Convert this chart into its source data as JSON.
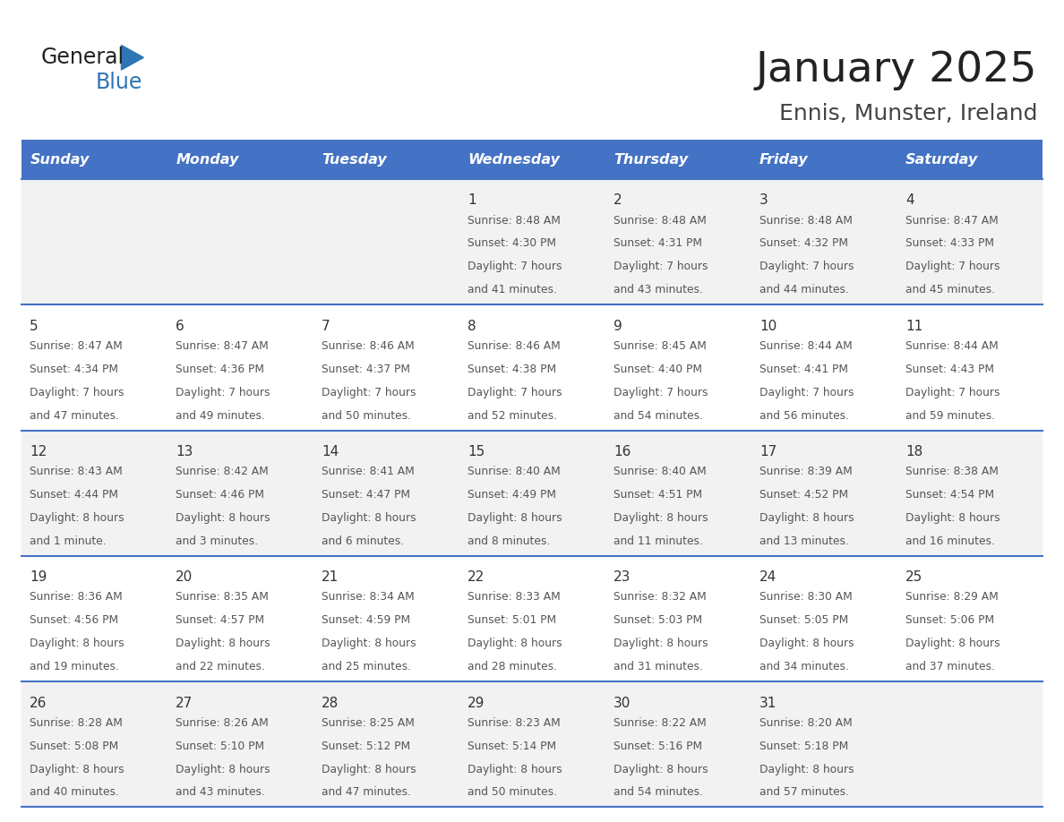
{
  "title": "January 2025",
  "subtitle": "Ennis, Munster, Ireland",
  "days_of_week": [
    "Sunday",
    "Monday",
    "Tuesday",
    "Wednesday",
    "Thursday",
    "Friday",
    "Saturday"
  ],
  "header_bg": "#4472C4",
  "header_text": "#FFFFFF",
  "row_bg_even": "#F2F2F2",
  "row_bg_odd": "#FFFFFF",
  "separator_color": "#4472C4",
  "day_num_color": "#333333",
  "cell_text_color": "#555555",
  "title_color": "#222222",
  "subtitle_color": "#444444",
  "logo_general_color": "#222222",
  "logo_blue_color": "#2E75B6",
  "calendar_data": [
    {
      "day": 1,
      "col": 3,
      "row": 0,
      "sunrise": "8:48 AM",
      "sunset": "4:30 PM",
      "daylight_l1": "Daylight: 7 hours",
      "daylight_l2": "and 41 minutes."
    },
    {
      "day": 2,
      "col": 4,
      "row": 0,
      "sunrise": "8:48 AM",
      "sunset": "4:31 PM",
      "daylight_l1": "Daylight: 7 hours",
      "daylight_l2": "and 43 minutes."
    },
    {
      "day": 3,
      "col": 5,
      "row": 0,
      "sunrise": "8:48 AM",
      "sunset": "4:32 PM",
      "daylight_l1": "Daylight: 7 hours",
      "daylight_l2": "and 44 minutes."
    },
    {
      "day": 4,
      "col": 6,
      "row": 0,
      "sunrise": "8:47 AM",
      "sunset": "4:33 PM",
      "daylight_l1": "Daylight: 7 hours",
      "daylight_l2": "and 45 minutes."
    },
    {
      "day": 5,
      "col": 0,
      "row": 1,
      "sunrise": "8:47 AM",
      "sunset": "4:34 PM",
      "daylight_l1": "Daylight: 7 hours",
      "daylight_l2": "and 47 minutes."
    },
    {
      "day": 6,
      "col": 1,
      "row": 1,
      "sunrise": "8:47 AM",
      "sunset": "4:36 PM",
      "daylight_l1": "Daylight: 7 hours",
      "daylight_l2": "and 49 minutes."
    },
    {
      "day": 7,
      "col": 2,
      "row": 1,
      "sunrise": "8:46 AM",
      "sunset": "4:37 PM",
      "daylight_l1": "Daylight: 7 hours",
      "daylight_l2": "and 50 minutes."
    },
    {
      "day": 8,
      "col": 3,
      "row": 1,
      "sunrise": "8:46 AM",
      "sunset": "4:38 PM",
      "daylight_l1": "Daylight: 7 hours",
      "daylight_l2": "and 52 minutes."
    },
    {
      "day": 9,
      "col": 4,
      "row": 1,
      "sunrise": "8:45 AM",
      "sunset": "4:40 PM",
      "daylight_l1": "Daylight: 7 hours",
      "daylight_l2": "and 54 minutes."
    },
    {
      "day": 10,
      "col": 5,
      "row": 1,
      "sunrise": "8:44 AM",
      "sunset": "4:41 PM",
      "daylight_l1": "Daylight: 7 hours",
      "daylight_l2": "and 56 minutes."
    },
    {
      "day": 11,
      "col": 6,
      "row": 1,
      "sunrise": "8:44 AM",
      "sunset": "4:43 PM",
      "daylight_l1": "Daylight: 7 hours",
      "daylight_l2": "and 59 minutes."
    },
    {
      "day": 12,
      "col": 0,
      "row": 2,
      "sunrise": "8:43 AM",
      "sunset": "4:44 PM",
      "daylight_l1": "Daylight: 8 hours",
      "daylight_l2": "and 1 minute."
    },
    {
      "day": 13,
      "col": 1,
      "row": 2,
      "sunrise": "8:42 AM",
      "sunset": "4:46 PM",
      "daylight_l1": "Daylight: 8 hours",
      "daylight_l2": "and 3 minutes."
    },
    {
      "day": 14,
      "col": 2,
      "row": 2,
      "sunrise": "8:41 AM",
      "sunset": "4:47 PM",
      "daylight_l1": "Daylight: 8 hours",
      "daylight_l2": "and 6 minutes."
    },
    {
      "day": 15,
      "col": 3,
      "row": 2,
      "sunrise": "8:40 AM",
      "sunset": "4:49 PM",
      "daylight_l1": "Daylight: 8 hours",
      "daylight_l2": "and 8 minutes."
    },
    {
      "day": 16,
      "col": 4,
      "row": 2,
      "sunrise": "8:40 AM",
      "sunset": "4:51 PM",
      "daylight_l1": "Daylight: 8 hours",
      "daylight_l2": "and 11 minutes."
    },
    {
      "day": 17,
      "col": 5,
      "row": 2,
      "sunrise": "8:39 AM",
      "sunset": "4:52 PM",
      "daylight_l1": "Daylight: 8 hours",
      "daylight_l2": "and 13 minutes."
    },
    {
      "day": 18,
      "col": 6,
      "row": 2,
      "sunrise": "8:38 AM",
      "sunset": "4:54 PM",
      "daylight_l1": "Daylight: 8 hours",
      "daylight_l2": "and 16 minutes."
    },
    {
      "day": 19,
      "col": 0,
      "row": 3,
      "sunrise": "8:36 AM",
      "sunset": "4:56 PM",
      "daylight_l1": "Daylight: 8 hours",
      "daylight_l2": "and 19 minutes."
    },
    {
      "day": 20,
      "col": 1,
      "row": 3,
      "sunrise": "8:35 AM",
      "sunset": "4:57 PM",
      "daylight_l1": "Daylight: 8 hours",
      "daylight_l2": "and 22 minutes."
    },
    {
      "day": 21,
      "col": 2,
      "row": 3,
      "sunrise": "8:34 AM",
      "sunset": "4:59 PM",
      "daylight_l1": "Daylight: 8 hours",
      "daylight_l2": "and 25 minutes."
    },
    {
      "day": 22,
      "col": 3,
      "row": 3,
      "sunrise": "8:33 AM",
      "sunset": "5:01 PM",
      "daylight_l1": "Daylight: 8 hours",
      "daylight_l2": "and 28 minutes."
    },
    {
      "day": 23,
      "col": 4,
      "row": 3,
      "sunrise": "8:32 AM",
      "sunset": "5:03 PM",
      "daylight_l1": "Daylight: 8 hours",
      "daylight_l2": "and 31 minutes."
    },
    {
      "day": 24,
      "col": 5,
      "row": 3,
      "sunrise": "8:30 AM",
      "sunset": "5:05 PM",
      "daylight_l1": "Daylight: 8 hours",
      "daylight_l2": "and 34 minutes."
    },
    {
      "day": 25,
      "col": 6,
      "row": 3,
      "sunrise": "8:29 AM",
      "sunset": "5:06 PM",
      "daylight_l1": "Daylight: 8 hours",
      "daylight_l2": "and 37 minutes."
    },
    {
      "day": 26,
      "col": 0,
      "row": 4,
      "sunrise": "8:28 AM",
      "sunset": "5:08 PM",
      "daylight_l1": "Daylight: 8 hours",
      "daylight_l2": "and 40 minutes."
    },
    {
      "day": 27,
      "col": 1,
      "row": 4,
      "sunrise": "8:26 AM",
      "sunset": "5:10 PM",
      "daylight_l1": "Daylight: 8 hours",
      "daylight_l2": "and 43 minutes."
    },
    {
      "day": 28,
      "col": 2,
      "row": 4,
      "sunrise": "8:25 AM",
      "sunset": "5:12 PM",
      "daylight_l1": "Daylight: 8 hours",
      "daylight_l2": "and 47 minutes."
    },
    {
      "day": 29,
      "col": 3,
      "row": 4,
      "sunrise": "8:23 AM",
      "sunset": "5:14 PM",
      "daylight_l1": "Daylight: 8 hours",
      "daylight_l2": "and 50 minutes."
    },
    {
      "day": 30,
      "col": 4,
      "row": 4,
      "sunrise": "8:22 AM",
      "sunset": "5:16 PM",
      "daylight_l1": "Daylight: 8 hours",
      "daylight_l2": "and 54 minutes."
    },
    {
      "day": 31,
      "col": 5,
      "row": 4,
      "sunrise": "8:20 AM",
      "sunset": "5:18 PM",
      "daylight_l1": "Daylight: 8 hours",
      "daylight_l2": "and 57 minutes."
    }
  ]
}
